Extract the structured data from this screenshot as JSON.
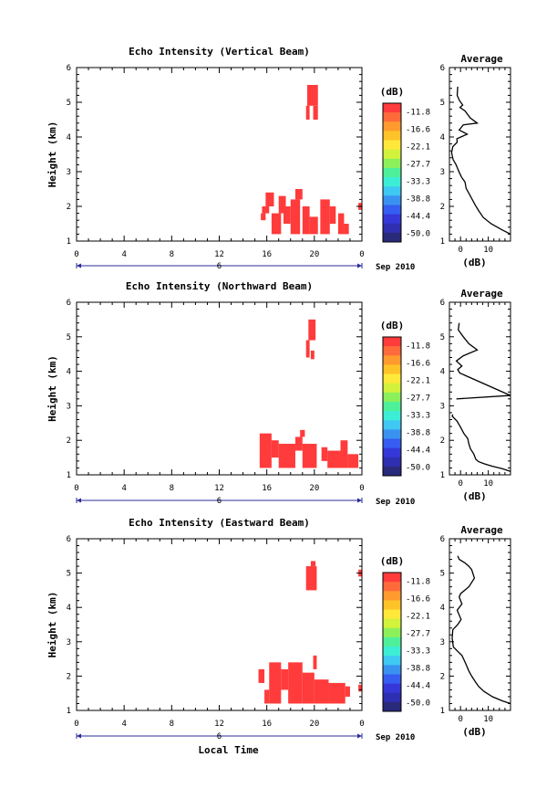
{
  "figure": {
    "x_axis_label": "Local Time",
    "date_suffix": "Sep 2010",
    "date_marker": "6",
    "x_ticks": [
      "0",
      "4",
      "8",
      "12",
      "16",
      "20",
      "0"
    ],
    "y_label": "Height (km)",
    "y_ticks": [
      "1",
      "2",
      "3",
      "4",
      "5",
      "6"
    ],
    "colorbar_unit": "(dB)",
    "colorbar_labels": [
      "-11.8",
      "-16.6",
      "-22.1",
      "-27.7",
      "-33.3",
      "-38.8",
      "-44.4",
      "-50.0"
    ],
    "colorbar_colors": [
      "#ff3b3b",
      "#ff6a3a",
      "#ff9a2e",
      "#ffc32a",
      "#ffe83a",
      "#d2f23c",
      "#8cf05a",
      "#4ff09a",
      "#3deed6",
      "#3ec8f2",
      "#3a92f0",
      "#355ef0",
      "#3538d6",
      "#2e2eb0",
      "#2a2a7a"
    ],
    "echo_color": "#ff3b3b",
    "average_title": "Average",
    "average_xlabel": "(dB)"
  },
  "chart_data": [
    {
      "type": "heatmap",
      "title": "Echo Intensity (Vertical Beam)",
      "xlabel": "",
      "ylabel": "Height (km)",
      "xlim": [
        0,
        24
      ],
      "ylim": [
        1,
        6
      ],
      "colorbar_range_db": [
        -50.0,
        -11.8
      ],
      "echo_cells": [
        {
          "t0": 15.5,
          "t1": 15.9,
          "h0": 1.6,
          "h1": 1.8
        },
        {
          "t0": 15.9,
          "t1": 16.6,
          "h0": 2.0,
          "h1": 2.4
        },
        {
          "t0": 15.6,
          "t1": 16.2,
          "h0": 1.8,
          "h1": 2.0
        },
        {
          "t0": 16.4,
          "t1": 17.2,
          "h0": 1.2,
          "h1": 1.8
        },
        {
          "t0": 17.0,
          "t1": 17.6,
          "h0": 1.8,
          "h1": 2.3
        },
        {
          "t0": 17.4,
          "t1": 18.0,
          "h0": 1.5,
          "h1": 2.0
        },
        {
          "t0": 18.0,
          "t1": 18.8,
          "h0": 1.2,
          "h1": 2.2
        },
        {
          "t0": 18.4,
          "t1": 19.0,
          "h0": 2.2,
          "h1": 2.5
        },
        {
          "t0": 19.0,
          "t1": 19.6,
          "h0": 1.2,
          "h1": 2.0
        },
        {
          "t0": 19.6,
          "t1": 20.3,
          "h0": 1.2,
          "h1": 1.7
        },
        {
          "t0": 20.5,
          "t1": 21.3,
          "h0": 1.2,
          "h1": 2.2
        },
        {
          "t0": 21.3,
          "t1": 21.8,
          "h0": 1.5,
          "h1": 2.0
        },
        {
          "t0": 22.0,
          "t1": 22.5,
          "h0": 1.2,
          "h1": 1.8
        },
        {
          "t0": 22.5,
          "t1": 22.9,
          "h0": 1.2,
          "h1": 1.5
        },
        {
          "t0": 23.7,
          "t1": 24.0,
          "h0": 1.9,
          "h1": 2.1
        },
        {
          "t0": 19.4,
          "t1": 20.3,
          "h0": 4.9,
          "h1": 5.5
        },
        {
          "t0": 19.3,
          "t1": 19.6,
          "h0": 4.5,
          "h1": 4.9
        },
        {
          "t0": 19.9,
          "t1": 20.3,
          "h0": 4.5,
          "h1": 4.9
        }
      ],
      "average_profile": {
        "xlim": [
          -4,
          18
        ],
        "x_ticks": [
          0,
          10
        ],
        "db": [
          -1,
          -1.2,
          -0.4,
          0.8,
          -0.2,
          1.6,
          3.5,
          6.0,
          1.0,
          -0.5,
          2.4,
          -1.3,
          -1.2,
          -2.8,
          -3.2,
          -2.7,
          -1.6,
          -0.7,
          0.3,
          1.6,
          2.0,
          3.2,
          4.2,
          5.2,
          6.5,
          8.2,
          11.0,
          15.0,
          18.0
        ],
        "height_km": [
          5.45,
          5.2,
          5.05,
          4.92,
          4.85,
          4.75,
          4.55,
          4.4,
          4.35,
          4.2,
          4.08,
          3.95,
          3.85,
          3.72,
          3.55,
          3.35,
          3.2,
          3.02,
          2.85,
          2.7,
          2.52,
          2.35,
          2.2,
          2.05,
          1.88,
          1.68,
          1.5,
          1.32,
          1.2
        ]
      }
    },
    {
      "type": "heatmap",
      "title": "Echo Intensity (Northward Beam)",
      "xlabel": "",
      "ylabel": "Height (km)",
      "xlim": [
        0,
        24
      ],
      "ylim": [
        1,
        6
      ],
      "colorbar_range_db": [
        -50.0,
        -11.8
      ],
      "echo_cells": [
        {
          "t0": 15.4,
          "t1": 16.4,
          "h0": 1.2,
          "h1": 2.2
        },
        {
          "t0": 16.4,
          "t1": 17.0,
          "h0": 1.5,
          "h1": 2.0
        },
        {
          "t0": 17.0,
          "t1": 18.4,
          "h0": 1.2,
          "h1": 1.9
        },
        {
          "t0": 18.4,
          "t1": 19.0,
          "h0": 1.7,
          "h1": 2.1
        },
        {
          "t0": 19.0,
          "t1": 20.2,
          "h0": 1.2,
          "h1": 1.9
        },
        {
          "t0": 18.8,
          "t1": 19.2,
          "h0": 2.1,
          "h1": 2.3
        },
        {
          "t0": 20.6,
          "t1": 21.1,
          "h0": 1.4,
          "h1": 1.8
        },
        {
          "t0": 21.1,
          "t1": 22.8,
          "h0": 1.2,
          "h1": 1.7
        },
        {
          "t0": 22.2,
          "t1": 22.8,
          "h0": 1.7,
          "h1": 2.0
        },
        {
          "t0": 22.8,
          "t1": 23.7,
          "h0": 1.2,
          "h1": 1.6
        },
        {
          "t0": 19.5,
          "t1": 20.1,
          "h0": 4.9,
          "h1": 5.5
        },
        {
          "t0": 19.3,
          "t1": 19.6,
          "h0": 4.4,
          "h1": 4.9
        },
        {
          "t0": 19.7,
          "t1": 20.0,
          "h0": 4.35,
          "h1": 4.6
        }
      ],
      "average_profile": {
        "xlim": [
          -4,
          18
        ],
        "x_ticks": [
          0,
          10
        ],
        "db": [
          -0.5,
          -0.8,
          1.0,
          3.0,
          6.0,
          1.0,
          -1.5,
          0.5,
          -1.0,
          -0.3,
          18.0,
          null,
          -2.8,
          -3.0,
          -1.2,
          0.0,
          1.2,
          2.6,
          3.0,
          3.6,
          4.8,
          5.5,
          6.5,
          8.5,
          11.5,
          15.0,
          18.0
        ],
        "height_km": [
          5.4,
          5.2,
          5.0,
          4.8,
          4.62,
          4.45,
          4.3,
          4.15,
          4.05,
          3.95,
          3.3,
          null,
          2.75,
          2.7,
          2.55,
          2.38,
          2.2,
          2.05,
          1.9,
          1.75,
          1.6,
          1.45,
          1.38,
          1.32,
          1.25,
          1.18,
          1.1
        ],
        "note_segment_from": [
          -1.5,
          3.2
        ]
      }
    },
    {
      "type": "heatmap",
      "title": "Echo Intensity (Eastward Beam)",
      "xlabel": "Local Time",
      "ylabel": "Height (km)",
      "xlim": [
        0,
        24
      ],
      "ylim": [
        1,
        6
      ],
      "colorbar_range_db": [
        -50.0,
        -11.8
      ],
      "echo_cells": [
        {
          "t0": 15.3,
          "t1": 15.8,
          "h0": 1.8,
          "h1": 2.2
        },
        {
          "t0": 15.8,
          "t1": 16.2,
          "h0": 1.2,
          "h1": 1.6
        },
        {
          "t0": 16.2,
          "t1": 17.2,
          "h0": 1.2,
          "h1": 2.4
        },
        {
          "t0": 17.2,
          "t1": 17.8,
          "h0": 1.6,
          "h1": 2.2
        },
        {
          "t0": 17.8,
          "t1": 19.0,
          "h0": 1.2,
          "h1": 2.4
        },
        {
          "t0": 19.0,
          "t1": 20.0,
          "h0": 1.2,
          "h1": 2.1
        },
        {
          "t0": 19.9,
          "t1": 20.2,
          "h0": 2.2,
          "h1": 2.6
        },
        {
          "t0": 20.0,
          "t1": 21.2,
          "h0": 1.2,
          "h1": 1.9
        },
        {
          "t0": 21.2,
          "t1": 22.6,
          "h0": 1.2,
          "h1": 1.8
        },
        {
          "t0": 22.6,
          "t1": 23.0,
          "h0": 1.4,
          "h1": 1.7
        },
        {
          "t0": 23.7,
          "t1": 24.0,
          "h0": 1.55,
          "h1": 1.75
        },
        {
          "t0": 19.3,
          "t1": 20.2,
          "h0": 4.5,
          "h1": 5.2
        },
        {
          "t0": 19.7,
          "t1": 20.1,
          "h0": 5.2,
          "h1": 5.35
        },
        {
          "t0": 23.7,
          "t1": 24.0,
          "h0": 4.9,
          "h1": 5.1
        }
      ],
      "average_profile": {
        "xlim": [
          -4,
          18
        ],
        "x_ticks": [
          0,
          10
        ],
        "db": [
          -1,
          -0.5,
          1.5,
          3.0,
          4.0,
          5.0,
          3.0,
          0.0,
          -0.5,
          0.5,
          -1.2,
          0.2,
          -1.0,
          -2.8,
          -3.0,
          -2.6,
          -1.0,
          0.5,
          1.4,
          2.2,
          3.0,
          4.0,
          5.2,
          6.5,
          8.5,
          11.5,
          15.0,
          18.0
        ],
        "height_km": [
          5.5,
          5.4,
          5.3,
          5.2,
          5.1,
          4.85,
          4.6,
          4.4,
          4.3,
          4.1,
          3.92,
          3.65,
          3.5,
          3.35,
          3.1,
          2.85,
          2.72,
          2.6,
          2.45,
          2.3,
          2.15,
          2.0,
          1.85,
          1.7,
          1.55,
          1.4,
          1.28,
          1.2
        ]
      }
    }
  ]
}
